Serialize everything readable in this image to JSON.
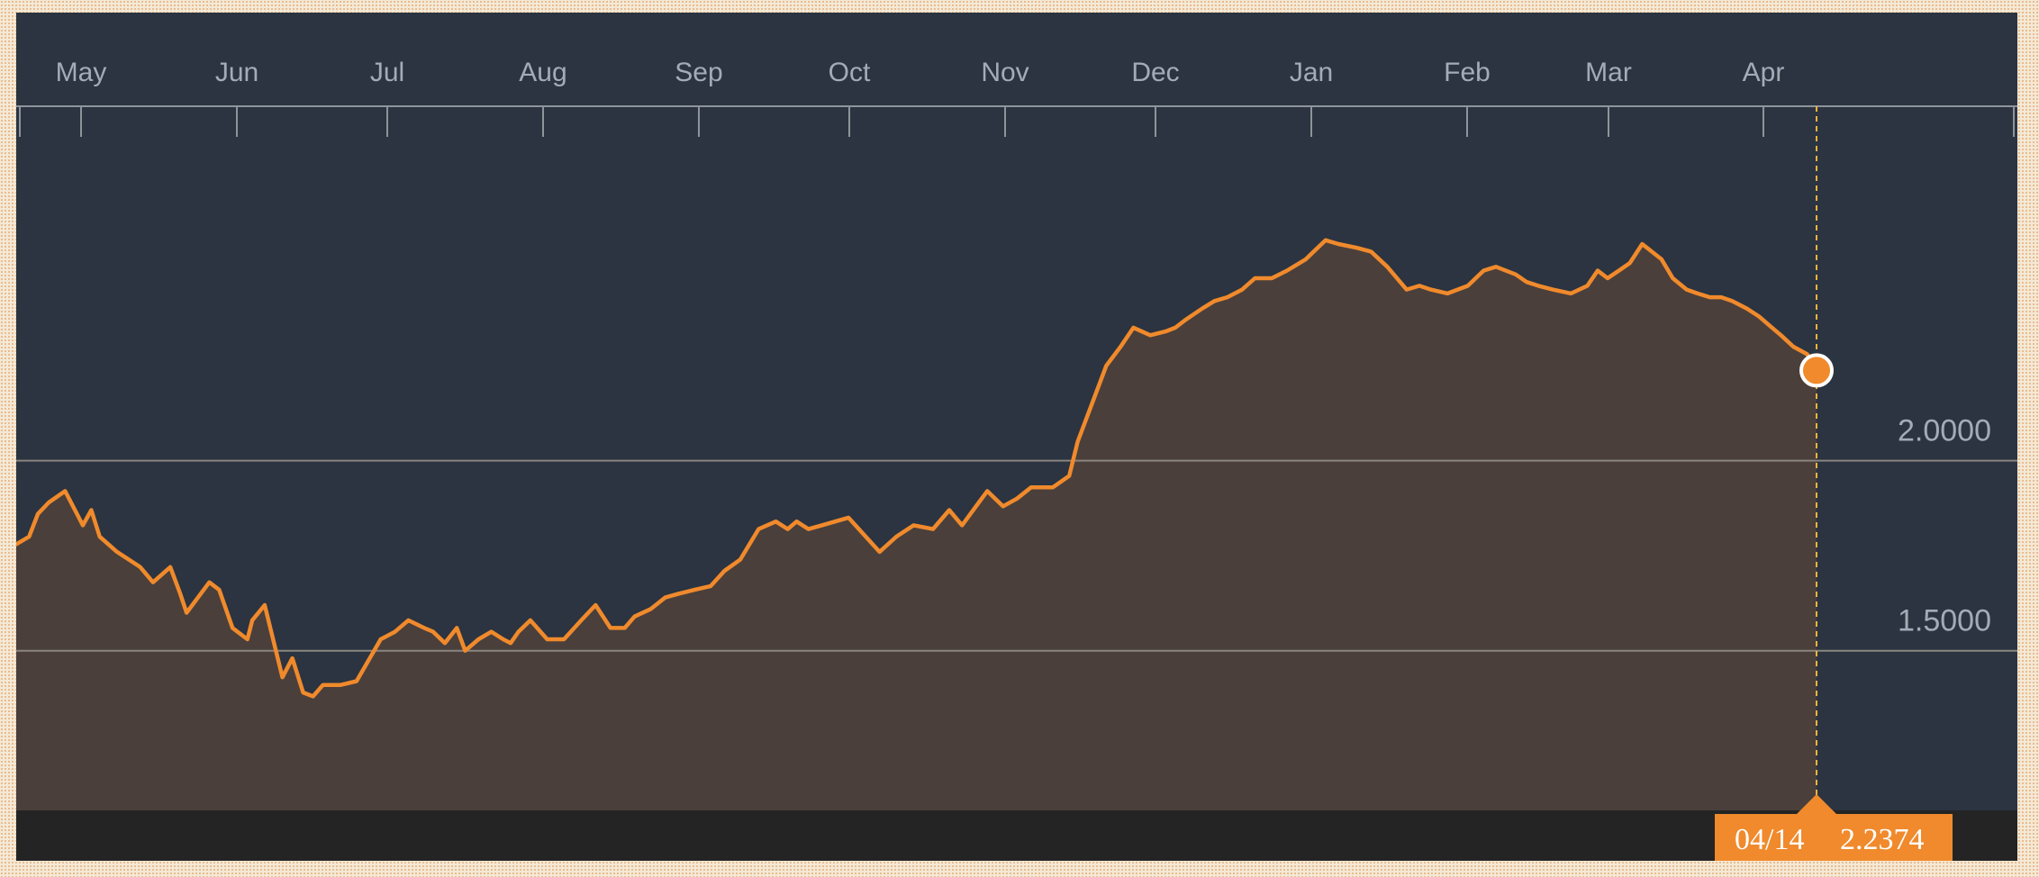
{
  "colors": {
    "background": "#2b3440",
    "line": "#f08a2c",
    "area_fill": "#4a3f3b",
    "gridline": "#8a857f",
    "axis_text": "#a3acb6",
    "footer": "#242424",
    "marker": "#f08a2c",
    "tooltip": "#f08a2c"
  },
  "tooltip": {
    "date": "04/14",
    "value": "2.2374"
  },
  "chart_data": {
    "type": "area",
    "title": "",
    "xlabel": "",
    "ylabel": "",
    "months": [
      "May",
      "Jun",
      "Jul",
      "Aug",
      "Sep",
      "Oct",
      "Nov",
      "Dec",
      "Jan",
      "Feb",
      "Mar",
      "Apr"
    ],
    "yticks": [
      {
        "value": 2.0,
        "label": "2.0000"
      },
      {
        "value": 1.5,
        "label": "1.5000"
      }
    ],
    "ylim": [
      1.08,
      2.93
    ],
    "grid": true,
    "current": {
      "date": "04/14",
      "value": 2.2374
    },
    "series": [
      {
        "x": [
          0,
          2.6,
          4.4,
          6.6,
          9.9,
          13.5,
          15.2,
          16.9,
          20.4,
          25.1,
          27.7,
          31.2,
          33.2,
          34.5,
          39.1,
          41.1,
          43.8,
          46.8,
          47.8,
          50.3,
          53.9,
          55.9,
          58.1,
          60.1,
          62.1,
          65.7,
          68.9,
          73.8,
          76.7,
          79.4,
          82.6,
          84.4,
          86.8,
          89.2,
          90.9,
          93.6,
          96.2,
          98.6,
          100.1,
          101.7,
          104.1,
          107.5,
          110.9,
          114.4,
          117.3,
          120.3,
          123.2,
          125.2,
          128.5,
          131.4,
          134.1,
          137.3,
          140.6,
          143.4,
          146.6,
          150.3,
          153.8,
          156.2,
          158.0,
          160.4,
          163.1,
          168.5,
          174.8,
          178.2,
          181.7,
          185.6,
          188.9,
          191.5,
          194.9,
          196.6,
          199.8,
          202.6,
          205.5,
          209.9,
          213.2,
          214.9,
          217.8,
          220.7,
          223.6,
          226.2,
          229.6,
          232.7,
          234.7,
          236.7,
          240.1,
          242.6,
          245.2,
          248.2,
          250.8,
          254.2,
          257.3,
          261.1,
          262.7,
          265.1,
          267.7,
          271.4,
          274.3,
          277.6,
          281.5,
          284.1,
          286.4,
          289.8,
          293.9,
          297.1,
          299.6,
          303.6,
          305.8,
          308.2,
          311.1,
          314.8,
          318.1,
          320.2,
          322.2,
          324.5,
          326.7,
          329.2,
          333.1,
          335.4,
          338.2,
          340.4,
          342.9,
          345.2,
          347.4,
          350.4,
          352.8,
          355.5,
          357.3,
          359.8,
          362.6,
          364.5
        ],
        "values": [
          1.78,
          1.8,
          1.86,
          1.89,
          1.92,
          1.83,
          1.87,
          1.8,
          1.76,
          1.72,
          1.68,
          1.72,
          1.65,
          1.6,
          1.68,
          1.66,
          1.56,
          1.53,
          1.58,
          1.62,
          1.43,
          1.48,
          1.39,
          1.38,
          1.41,
          1.41,
          1.42,
          1.53,
          1.55,
          1.58,
          1.56,
          1.55,
          1.52,
          1.56,
          1.5,
          1.53,
          1.55,
          1.53,
          1.52,
          1.55,
          1.58,
          1.53,
          1.53,
          1.58,
          1.62,
          1.56,
          1.56,
          1.59,
          1.61,
          1.64,
          1.65,
          1.66,
          1.67,
          1.71,
          1.74,
          1.82,
          1.84,
          1.82,
          1.84,
          1.82,
          1.83,
          1.85,
          1.76,
          1.8,
          1.83,
          1.82,
          1.87,
          1.83,
          1.89,
          1.92,
          1.88,
          1.9,
          1.93,
          1.93,
          1.96,
          2.05,
          2.15,
          2.25,
          2.3,
          2.35,
          2.33,
          2.34,
          2.35,
          2.37,
          2.4,
          2.42,
          2.43,
          2.45,
          2.48,
          2.48,
          2.5,
          2.53,
          2.55,
          2.58,
          2.57,
          2.56,
          2.55,
          2.51,
          2.45,
          2.46,
          2.45,
          2.44,
          2.46,
          2.5,
          2.51,
          2.49,
          2.47,
          2.46,
          2.45,
          2.44,
          2.46,
          2.5,
          2.48,
          2.5,
          2.52,
          2.57,
          2.53,
          2.48,
          2.45,
          2.44,
          2.43,
          2.43,
          2.42,
          2.4,
          2.38,
          2.35,
          2.33,
          2.3,
          2.28,
          2.2374
        ]
      }
    ]
  }
}
